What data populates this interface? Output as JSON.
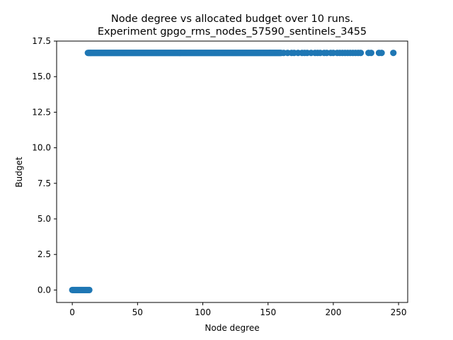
{
  "chart_data": {
    "type": "scatter",
    "title_line1": "Node degree vs allocated budget over 10 runs.",
    "title_line2": "Experiment gpgo_rms_nodes_57590_sentinels_3455",
    "xlabel": "Node degree",
    "ylabel": "Budget",
    "xlim": [
      -12,
      257
    ],
    "ylim": [
      -0.875,
      17.5
    ],
    "xticks": [
      0,
      50,
      100,
      150,
      200,
      250
    ],
    "xtick_labels": [
      "0",
      "50",
      "100",
      "150",
      "200",
      "250"
    ],
    "yticks": [
      0.0,
      2.5,
      5.0,
      7.5,
      10.0,
      12.5,
      15.0,
      17.5
    ],
    "ytick_labels": [
      "0.0",
      "2.5",
      "5.0",
      "7.5",
      "10.0",
      "12.5",
      "15.0",
      "17.5"
    ],
    "grid": false,
    "marker_color": "#1f77b4",
    "series": [
      {
        "x_dense_ranges": [
          [
            0,
            13
          ],
          [
            12,
            160
          ]
        ],
        "y_dense_values": [
          0.0,
          16.67
        ],
        "points": [
          {
            "x": 162,
            "y": 16.67
          },
          {
            "x": 165,
            "y": 16.67
          },
          {
            "x": 168,
            "y": 16.67
          },
          {
            "x": 170,
            "y": 16.67
          },
          {
            "x": 173,
            "y": 16.67
          },
          {
            "x": 176,
            "y": 16.67
          },
          {
            "x": 178,
            "y": 16.67
          },
          {
            "x": 180,
            "y": 16.67
          },
          {
            "x": 183,
            "y": 16.67
          },
          {
            "x": 186,
            "y": 16.67
          },
          {
            "x": 188,
            "y": 16.67
          },
          {
            "x": 190,
            "y": 16.67
          },
          {
            "x": 193,
            "y": 16.67
          },
          {
            "x": 195,
            "y": 16.67
          },
          {
            "x": 198,
            "y": 16.67
          },
          {
            "x": 200,
            "y": 16.67
          },
          {
            "x": 203,
            "y": 16.67
          },
          {
            "x": 205,
            "y": 16.67
          },
          {
            "x": 207,
            "y": 16.67
          },
          {
            "x": 209,
            "y": 16.67
          },
          {
            "x": 211,
            "y": 16.67
          },
          {
            "x": 213,
            "y": 16.67
          },
          {
            "x": 215,
            "y": 16.67
          },
          {
            "x": 217,
            "y": 16.67
          },
          {
            "x": 219,
            "y": 16.67
          },
          {
            "x": 221,
            "y": 16.67
          },
          {
            "x": 227,
            "y": 16.67
          },
          {
            "x": 229,
            "y": 16.67
          },
          {
            "x": 235,
            "y": 16.67
          },
          {
            "x": 237,
            "y": 16.67
          },
          {
            "x": 246,
            "y": 16.67
          }
        ]
      }
    ]
  }
}
